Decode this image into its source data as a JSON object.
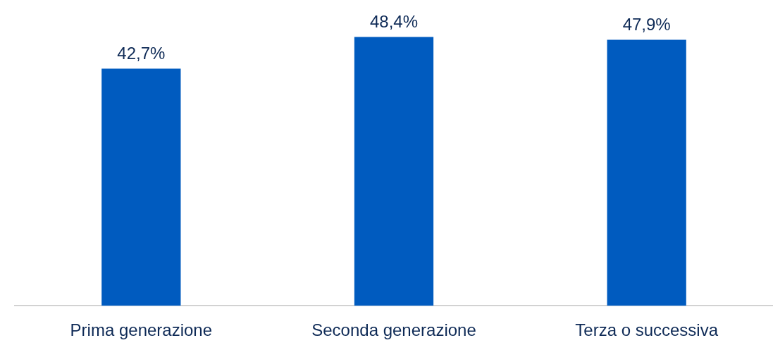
{
  "chart_data": {
    "type": "bar",
    "categories": [
      "Prima generazione",
      "Seconda generazione",
      "Terza o successiva"
    ],
    "values": [
      42.7,
      48.4,
      47.9
    ],
    "color": "#005bbf",
    "value_labels": [
      "42,7%",
      "48,4%",
      "47,9%"
    ],
    "tick_labels": "x",
    "grid": false,
    "legend": false
  }
}
